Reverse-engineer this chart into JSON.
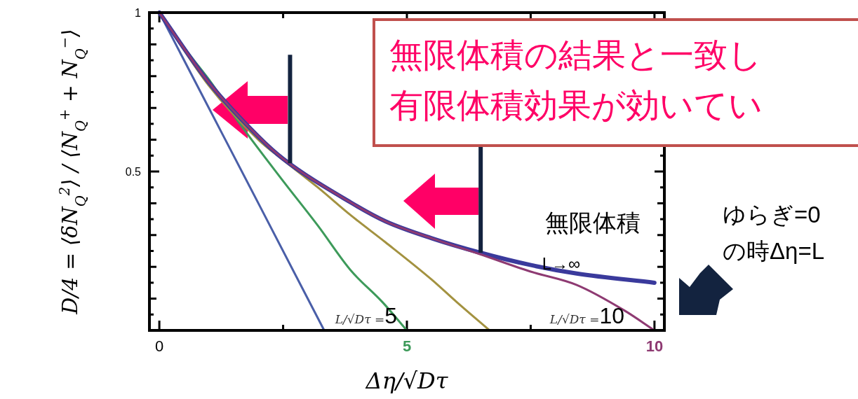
{
  "chart_data": {
    "type": "line",
    "xlabel": "Δη/√Dτ",
    "ylabel": "D/4 = ⟨δN$_{Q}$$^{2}$⟩ / ⟨N$_{Q}$$^{+}$ + N$_{Q}$$^{−}$⟩",
    "xlim": [
      -0.2,
      10.2
    ],
    "ylim": [
      0,
      1
    ],
    "xticks": [
      0,
      5,
      10
    ],
    "yticks": [
      {
        "value": 0,
        "label": null
      },
      0.5,
      1
    ],
    "grid": false,
    "series": [
      {
        "color": "#4a5fa8",
        "x": [
          0,
          1,
          2,
          3.33
        ],
        "values": [
          1,
          0.7,
          0.4,
          0
        ]
      },
      {
        "name": "L/√Dτ =5",
        "color": "#3d9a5a",
        "x": [
          0,
          0.5,
          1,
          1.65,
          2.5,
          3.2,
          3.86,
          4.5,
          5
        ],
        "values": [
          1,
          0.89,
          0.79,
          0.645,
          0.47,
          0.33,
          0.19,
          0.09,
          0
        ]
      },
      {
        "color": "#a39240",
        "x": [
          0,
          1,
          2,
          2.5,
          3.2,
          3.86,
          4.57,
          5.5,
          6.0,
          6.67
        ],
        "values": [
          1,
          0.77,
          0.6,
          0.536,
          0.45,
          0.363,
          0.277,
          0.16,
          0.09,
          0
        ]
      },
      {
        "name": "無限体積 L→∞",
        "color": "#3a3a9c",
        "x": [
          0,
          1,
          2,
          2.5,
          3.86,
          4.57,
          5.5,
          6.47,
          7.52,
          8.43,
          10
        ],
        "values": [
          1,
          0.78,
          0.61,
          0.54,
          0.403,
          0.343,
          0.29,
          0.245,
          0.205,
          0.179,
          0.15
        ]
      },
      {
        "name": "L/√Dτ =10",
        "color": "#8e3a72",
        "x": [
          0,
          1,
          2,
          2.5,
          3.86,
          4.57,
          5.5,
          6.47,
          7.5,
          8.43,
          9.4,
          10
        ],
        "values": [
          1,
          0.78,
          0.61,
          0.54,
          0.403,
          0.343,
          0.29,
          0.24,
          0.185,
          0.143,
          0.062,
          0
        ]
      }
    ],
    "ref_lines": [
      {
        "axis": "x",
        "value": 2.64,
        "color": "#13233f"
      },
      {
        "axis": "x",
        "value": 6.49,
        "color": "#13233f"
      }
    ],
    "annotations": [
      "無限体積の結果と一致し",
      "有限体積効果が効いてい",
      "ゆらぎ=0",
      "の時Δη=L"
    ]
  }
}
